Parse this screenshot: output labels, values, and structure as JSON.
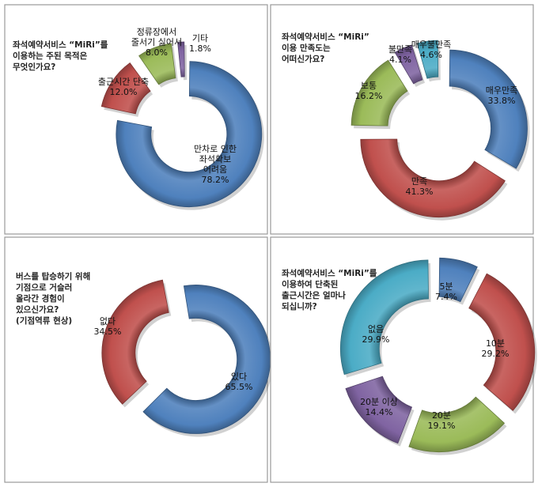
{
  "chart_data": [
    {
      "type": "pie",
      "title": "",
      "question_lines": [
        "좌석예약서비스 “MiRi”를",
        "이용하는 주된 목적은",
        "무엇인가요?"
      ],
      "categories": [
        "만차로 인한 좌석확보 어려움",
        "출근시간 단축",
        "정류장에서 줄서기 싫어서",
        "기타"
      ],
      "label_lines": [
        [
          "만차로 인한",
          "좌석확보",
          "어려움"
        ],
        [
          "출근시간 단축"
        ],
        [
          "정류장에서",
          "줄서기 싫어서"
        ],
        [
          "기타"
        ]
      ],
      "values": [
        78.2,
        12.0,
        8.0,
        1.8
      ],
      "value_labels": [
        "78.2%",
        "12.0%",
        "8.0%",
        "1.8%"
      ],
      "colors": [
        "#4f81bd",
        "#c0504d",
        "#9bbb59",
        "#8064a2"
      ]
    },
    {
      "type": "pie",
      "title": "",
      "question_lines": [
        "좌석예약서비스 “MiRi”",
        "이용 만족도는",
        "어떠신가요?"
      ],
      "categories": [
        "매우만족",
        "만족",
        "보통",
        "불만족",
        "매우불만족"
      ],
      "label_lines": [
        [
          "매우만족"
        ],
        [
          "만족"
        ],
        [
          "보통"
        ],
        [
          "불만족"
        ],
        [
          "매우불만족"
        ]
      ],
      "values": [
        33.8,
        41.3,
        16.2,
        4.1,
        4.6
      ],
      "value_labels": [
        "33.8%",
        "41.3%",
        "16.2%",
        "4.1%",
        "4.6%"
      ],
      "colors": [
        "#4f81bd",
        "#c0504d",
        "#9bbb59",
        "#8064a2",
        "#4bacc6"
      ]
    },
    {
      "type": "pie",
      "title": "",
      "question_lines": [
        "버스를 탑승하기 위해",
        "기점으로 거슬러",
        "올라간 경험이",
        "있으신가요?",
        "(기점역류 현상)"
      ],
      "categories": [
        "있다",
        "없다"
      ],
      "label_lines": [
        [
          "있다"
        ],
        [
          "없다"
        ]
      ],
      "values": [
        65.5,
        34.5
      ],
      "value_labels": [
        "65.5%",
        "34.5%"
      ],
      "colors": [
        "#4f81bd",
        "#c0504d"
      ]
    },
    {
      "type": "pie",
      "title": "",
      "question_lines": [
        "좌석예약서비스 “MiRi”를",
        "이용하여 단축된",
        "출근시간은 얼마나",
        "되십니까?"
      ],
      "categories": [
        "5분",
        "10분",
        "20분",
        "20분 이상",
        "없음"
      ],
      "label_lines": [
        [
          "5분"
        ],
        [
          "10분"
        ],
        [
          "20분"
        ],
        [
          "20분 이상"
        ],
        [
          "없음"
        ]
      ],
      "values": [
        7.4,
        29.2,
        19.1,
        14.4,
        29.9
      ],
      "value_labels": [
        "7.4%",
        "29.2%",
        "19.1%",
        "14.4%",
        "29.9%"
      ],
      "colors": [
        "#4f81bd",
        "#c0504d",
        "#9bbb59",
        "#8064a2",
        "#4bacc6"
      ]
    }
  ]
}
